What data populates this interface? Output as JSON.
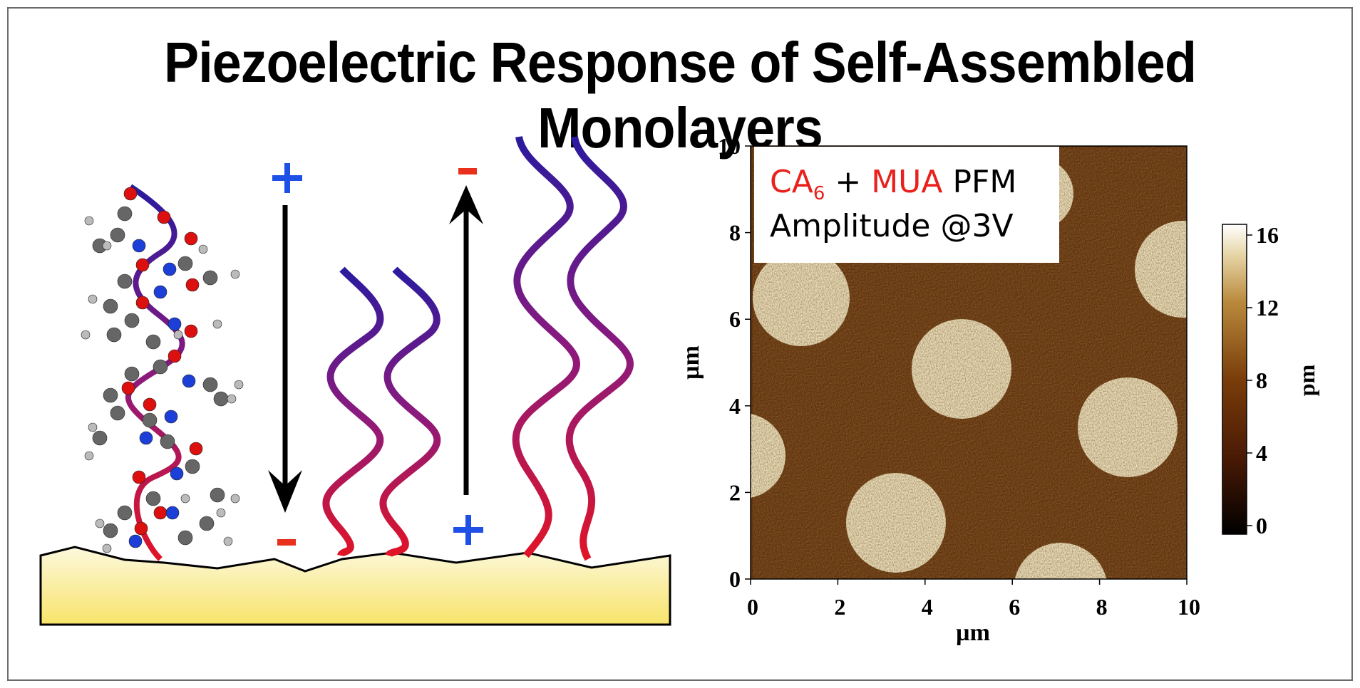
{
  "title": "Piezoelectric Response of Self-Assembled Monolayers",
  "left_panel": {
    "top_plus_1": "+",
    "bottom_minus_1": "-",
    "top_minus_2": "-",
    "bottom_plus_2": "+",
    "plus_color": "#1e4fe6",
    "minus_color": "#e8301c",
    "substrate_color_top": "#fbf7d8",
    "substrate_color_bottom": "#f7e46a"
  },
  "afm_image": {
    "overlay": {
      "ca": "CA",
      "ca_sub": "6",
      "plus": " + ",
      "mua": "MUA",
      "pfm": " PFM",
      "line2": "Amplitude @3V"
    },
    "x_ticks": [
      "0",
      "2",
      "4",
      "6",
      "8",
      "10"
    ],
    "y_ticks": [
      "0",
      "2",
      "4",
      "6",
      "8",
      "10"
    ],
    "x_label": "µm",
    "y_label": "µm",
    "colorbar_ticks": [
      "0",
      "4",
      "8",
      "12",
      "16"
    ],
    "colorbar_label": "pm",
    "background_color": "#6a3a0f",
    "dot_color": "#e9dcb5"
  }
}
